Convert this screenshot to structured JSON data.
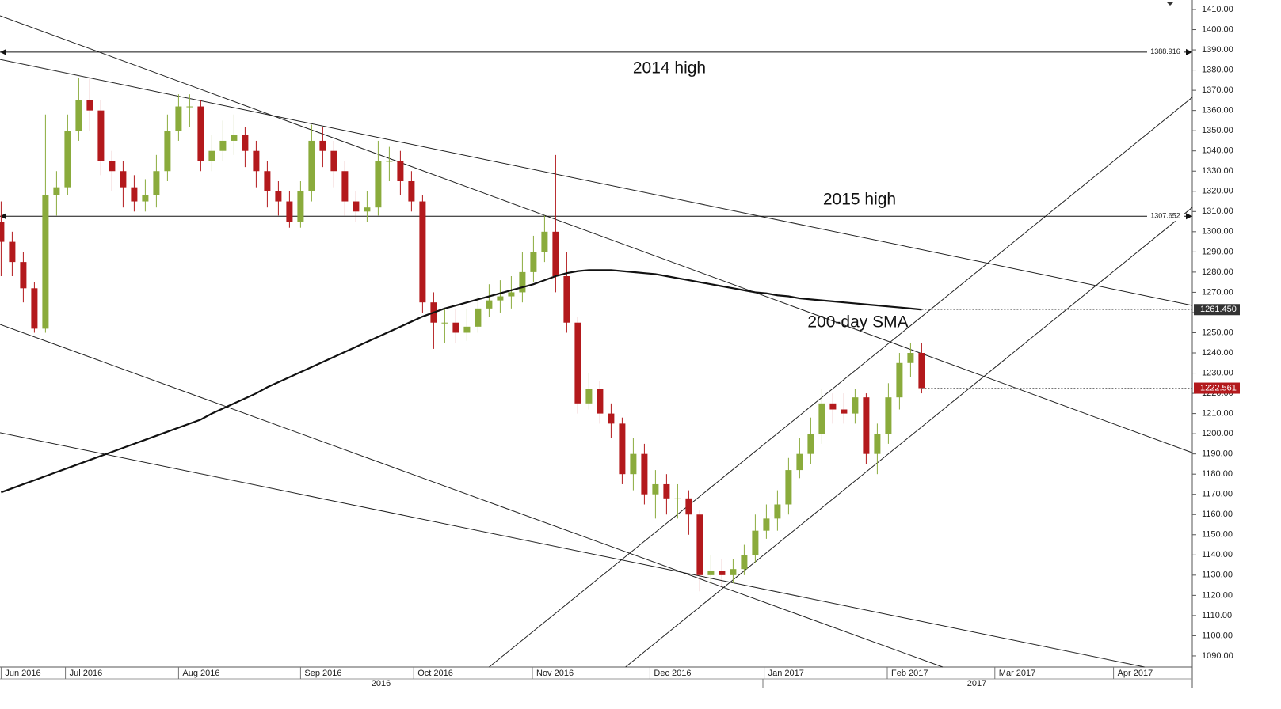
{
  "chart_data": {
    "type": "candlestick",
    "xlim": [
      -0.1,
      107.4
    ],
    "ylim": [
      1084.5,
      1414.7
    ],
    "yticks": [
      {
        "value": 1090,
        "label": "1090.00"
      },
      {
        "value": 1100,
        "label": "1100.00"
      },
      {
        "value": 1110,
        "label": "1110.00"
      },
      {
        "value": 1120,
        "label": "1120.00"
      },
      {
        "value": 1130,
        "label": "1130.00"
      },
      {
        "value": 1140,
        "label": "1140.00"
      },
      {
        "value": 1150,
        "label": "1150.00"
      },
      {
        "value": 1160,
        "label": "1160.00"
      },
      {
        "value": 1170,
        "label": "1170.00"
      },
      {
        "value": 1180,
        "label": "1180.00"
      },
      {
        "value": 1190,
        "label": "1190.00"
      },
      {
        "value": 1200,
        "label": "1200.00"
      },
      {
        "value": 1210,
        "label": "1210.00"
      },
      {
        "value": 1220,
        "label": "1220.00"
      },
      {
        "value": 1230,
        "label": "1230.00"
      },
      {
        "value": 1240,
        "label": "1240.00"
      },
      {
        "value": 1250,
        "label": "1250.00"
      },
      {
        "value": 1260,
        "label": "1260.00"
      },
      {
        "value": 1270,
        "label": "1270.00"
      },
      {
        "value": 1280,
        "label": "1280.00"
      },
      {
        "value": 1290,
        "label": "1290.00"
      },
      {
        "value": 1300,
        "label": "1300.00"
      },
      {
        "value": 1310,
        "label": "1310.00"
      },
      {
        "value": 1320,
        "label": "1320.00"
      },
      {
        "value": 1330,
        "label": "1330.00"
      },
      {
        "value": 1340,
        "label": "1340.00"
      },
      {
        "value": 1350,
        "label": "1350.00"
      },
      {
        "value": 1360,
        "label": "1360.00"
      },
      {
        "value": 1370,
        "label": "1370.00"
      },
      {
        "value": 1380,
        "label": "1380.00"
      },
      {
        "value": 1390,
        "label": "1390.00"
      },
      {
        "value": 1400,
        "label": "1400.00"
      },
      {
        "value": 1410,
        "label": "1410.00"
      }
    ],
    "xticks": [
      {
        "value": 0,
        "label": "Jun 2016"
      },
      {
        "value": 5.8,
        "label": "Jul 2016"
      },
      {
        "value": 16.0,
        "label": "Aug 2016"
      },
      {
        "value": 27.0,
        "label": "Sep 2016"
      },
      {
        "value": 37.2,
        "label": "Oct 2016"
      },
      {
        "value": 47.9,
        "label": "Nov 2016"
      },
      {
        "value": 58.5,
        "label": "Dec 2016"
      },
      {
        "value": 68.8,
        "label": "Jan 2017"
      },
      {
        "value": 79.9,
        "label": "Feb 2017"
      },
      {
        "value": 89.6,
        "label": "Mar 2017"
      },
      {
        "value": 100.3,
        "label": "Apr 2017"
      }
    ],
    "year_labels": [
      "2016",
      "2017"
    ],
    "up_color": "#8aab3c",
    "down_color": "#b3191c",
    "candles": {
      "open": [
        1305,
        1295,
        1285,
        1272,
        1252,
        1318,
        1322,
        1350,
        1365,
        1360,
        1335,
        1330,
        1322,
        1315,
        1318,
        1330,
        1350,
        1362,
        1362,
        1335,
        1340,
        1345,
        1348,
        1340,
        1330,
        1320,
        1315,
        1305,
        1320,
        1345,
        1340,
        1330,
        1315,
        1310,
        1312,
        1335,
        1335,
        1325,
        1315,
        1265,
        1255,
        1255,
        1250,
        1253,
        1262,
        1266,
        1268,
        1270,
        1280,
        1290,
        1300,
        1278,
        1255,
        1215,
        1222,
        1210,
        1205,
        1180,
        1190,
        1170,
        1175,
        1168,
        1168,
        1160,
        1130,
        1132,
        1130,
        1133,
        1140,
        1152,
        1158,
        1165,
        1182,
        1190,
        1200,
        1215,
        1212,
        1210,
        1218,
        1190,
        1200,
        1218,
        1235,
        1240
      ],
      "high": [
        1315,
        1300,
        1290,
        1275,
        1358,
        1330,
        1358,
        1376,
        1376,
        1365,
        1340,
        1335,
        1328,
        1326,
        1338,
        1358,
        1368,
        1368,
        1365,
        1348,
        1355,
        1358,
        1352,
        1345,
        1335,
        1325,
        1320,
        1325,
        1353,
        1352,
        1345,
        1335,
        1320,
        1320,
        1345,
        1342,
        1340,
        1330,
        1318,
        1270,
        1262,
        1262,
        1262,
        1268,
        1274,
        1276,
        1278,
        1290,
        1298,
        1308,
        1338,
        1290,
        1258,
        1230,
        1226,
        1215,
        1208,
        1198,
        1195,
        1182,
        1180,
        1175,
        1172,
        1162,
        1140,
        1138,
        1138,
        1145,
        1160,
        1165,
        1172,
        1188,
        1198,
        1208,
        1222,
        1220,
        1220,
        1222,
        1220,
        1205,
        1225,
        1240,
        1245,
        1245
      ],
      "low": [
        1278,
        1278,
        1265,
        1250,
        1250,
        1308,
        1318,
        1345,
        1350,
        1328,
        1320,
        1312,
        1310,
        1310,
        1312,
        1325,
        1345,
        1352,
        1330,
        1330,
        1335,
        1338,
        1332,
        1322,
        1312,
        1308,
        1302,
        1302,
        1315,
        1332,
        1322,
        1308,
        1305,
        1305,
        1308,
        1325,
        1318,
        1310,
        1260,
        1242,
        1245,
        1245,
        1246,
        1250,
        1258,
        1260,
        1262,
        1265,
        1275,
        1285,
        1270,
        1250,
        1210,
        1212,
        1205,
        1198,
        1175,
        1172,
        1165,
        1158,
        1160,
        1158,
        1150,
        1122,
        1125,
        1124,
        1126,
        1130,
        1136,
        1148,
        1152,
        1160,
        1178,
        1185,
        1195,
        1205,
        1205,
        1205,
        1185,
        1180,
        1195,
        1212,
        1228,
        1220
      ],
      "close": [
        1295,
        1285,
        1272,
        1252,
        1318,
        1322,
        1350,
        1365,
        1360,
        1335,
        1330,
        1322,
        1315,
        1318,
        1330,
        1350,
        1362,
        1362,
        1335,
        1340,
        1345,
        1348,
        1340,
        1330,
        1320,
        1315,
        1305,
        1320,
        1345,
        1340,
        1330,
        1315,
        1310,
        1312,
        1335,
        1335,
        1325,
        1315,
        1265,
        1255,
        1255,
        1250,
        1253,
        1262,
        1266,
        1268,
        1270,
        1280,
        1290,
        1300,
        1278,
        1255,
        1215,
        1222,
        1210,
        1205,
        1180,
        1190,
        1170,
        1175,
        1168,
        1168,
        1160,
        1130,
        1132,
        1130,
        1133,
        1140,
        1152,
        1158,
        1165,
        1182,
        1190,
        1200,
        1215,
        1212,
        1210,
        1218,
        1190,
        1200,
        1218,
        1235,
        1240,
        1222.561
      ]
    },
    "sma": {
      "annotation": "200-day SMA",
      "color": "#111111",
      "values": [
        1171,
        1173,
        1175,
        1177,
        1179,
        1181,
        1183,
        1185,
        1187,
        1189,
        1191,
        1193,
        1195,
        1197,
        1199,
        1201,
        1203,
        1205,
        1207,
        1210,
        1212.5,
        1215,
        1217.5,
        1220,
        1223,
        1225.5,
        1228,
        1230.5,
        1233,
        1235.5,
        1238,
        1240.5,
        1243,
        1245.5,
        1248,
        1250.5,
        1253,
        1255.5,
        1258,
        1260,
        1262,
        1263.5,
        1265,
        1266.5,
        1268,
        1269.5,
        1271,
        1272.5,
        1274,
        1276,
        1278,
        1279.5,
        1280.5,
        1281,
        1281,
        1281,
        1280.5,
        1280,
        1279.5,
        1279,
        1278,
        1277,
        1276,
        1275,
        1274,
        1273,
        1272,
        1271,
        1270,
        1269.5,
        1268.5,
        1268,
        1267,
        1266.5,
        1266,
        1265.5,
        1265,
        1264.5,
        1264,
        1263.5,
        1263,
        1262.5,
        1262,
        1261.45
      ],
      "last_label": {
        "value": 1261.45,
        "label": "1261.450"
      }
    },
    "last_price": 1222.561,
    "hlines": [
      {
        "value": 1388.916,
        "annotation": "2014 high"
      },
      {
        "value": 1307.652,
        "annotation": "2015 high"
      }
    ],
    "trendlines": [
      {
        "x": [
          -0.1,
          107.4
        ],
        "y": [
          1406.9,
          1190.6
        ]
      },
      {
        "x": [
          -0.1,
          107.4
        ],
        "y": [
          1385.3,
          1263.5
        ]
      },
      {
        "x": [
          -0.1,
          84.9
        ],
        "y": [
          1254.1,
          1084.5
        ]
      },
      {
        "x": [
          -0.1,
          103.1
        ],
        "y": [
          1200.5,
          1084.5
        ]
      },
      {
        "x": [
          44.0,
          107.4
        ],
        "y": [
          1084.5,
          1366.5
        ]
      },
      {
        "x": [
          56.3,
          107.4
        ],
        "y": [
          1084.5,
          1312.0
        ]
      }
    ]
  }
}
